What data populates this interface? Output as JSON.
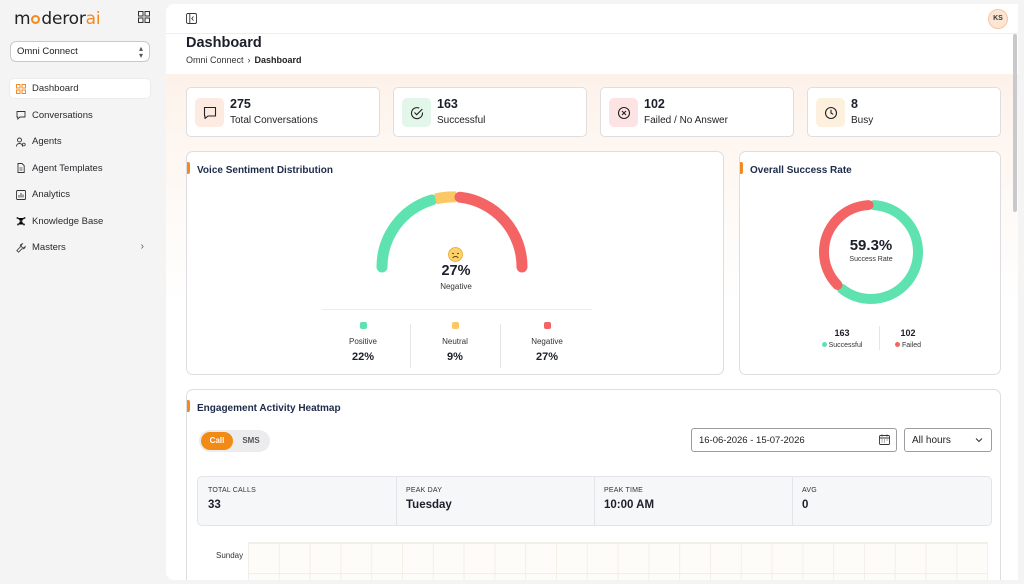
{
  "brand": {
    "logo_pre": "m",
    "logo_mid": "deror",
    "logo_ai": "ai"
  },
  "workspace": {
    "selected": "Omni Connect"
  },
  "sidebar": {
    "items": [
      {
        "label": "Dashboard",
        "icon": "dashboard-icon",
        "active": true
      },
      {
        "label": "Conversations",
        "icon": "chat-icon"
      },
      {
        "label": "Agents",
        "icon": "agents-icon"
      },
      {
        "label": "Agent Templates",
        "icon": "document-icon"
      },
      {
        "label": "Analytics",
        "icon": "analytics-icon"
      },
      {
        "label": "Knowledge Base",
        "icon": "network-icon"
      },
      {
        "label": "Masters",
        "icon": "wrench-icon",
        "has_submenu": true
      }
    ]
  },
  "user": {
    "initials": "KS"
  },
  "header": {
    "title": "Dashboard",
    "breadcrumb": [
      "Omni Connect",
      "Dashboard"
    ]
  },
  "stats": [
    {
      "value": "275",
      "label": "Total Conversations",
      "icon": "message-icon",
      "bg": "#fdebe1"
    },
    {
      "value": "163",
      "label": "Successful",
      "icon": "check-circle-icon",
      "bg": "#e3f6ea"
    },
    {
      "value": "102",
      "label": "Failed / No Answer",
      "icon": "x-circle-icon",
      "bg": "#fde4e4"
    },
    {
      "value": "8",
      "label": "Busy",
      "icon": "clock-icon",
      "bg": "#fdf1de"
    }
  ],
  "sentiment": {
    "title": "Voice Sentiment Distribution",
    "center_value": "27%",
    "center_label": "Negative",
    "center_icon": "sad-face-icon",
    "items": [
      {
        "name": "Positive",
        "pct": "22%",
        "color": "#5ee3b0"
      },
      {
        "name": "Neutral",
        "pct": "9%",
        "color": "#fcc865"
      },
      {
        "name": "Negative",
        "pct": "27%",
        "color": "#f46464"
      }
    ]
  },
  "success_rate": {
    "title": "Overall Success Rate",
    "value": "59.3%",
    "label": "Success Rate",
    "successful": {
      "value": "163",
      "label": "Successful",
      "color": "#5ee3b0"
    },
    "failed": {
      "value": "102",
      "label": "Failed",
      "color": "#f46464"
    }
  },
  "heatmap": {
    "title": "Engagement Activity Heatmap",
    "tabs": [
      "Call",
      "SMS"
    ],
    "active_tab": "Call",
    "accent": "#f28a16",
    "date_range": "16-06-2026 - 15-07-2026",
    "hours": "All hours",
    "summary": [
      {
        "key": "TOTAL CALLS",
        "value": "33"
      },
      {
        "key": "PEAK DAY",
        "value": "Tuesday"
      },
      {
        "key": "PEAK TIME",
        "value": "10:00 AM"
      },
      {
        "key": "AVG",
        "value": "0"
      }
    ],
    "rows": [
      "Sunday"
    ]
  }
}
